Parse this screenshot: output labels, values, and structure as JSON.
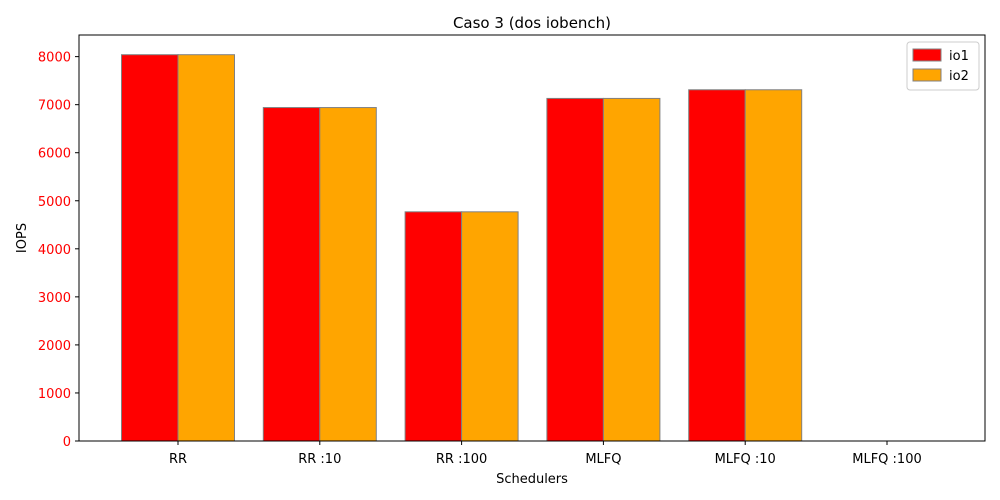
{
  "chart_data": {
    "type": "bar",
    "title": "Caso 3 (dos iobench)",
    "xlabel": "Schedulers",
    "ylabel": "IOPS",
    "categories": [
      "RR",
      "RR :10",
      "RR :100",
      "MLFQ",
      "MLFQ :10",
      "MLFQ :100"
    ],
    "series": [
      {
        "name": "io1",
        "color": "#ff0000",
        "values": [
          8040,
          6940,
          4770,
          7130,
          7310,
          0
        ]
      },
      {
        "name": "io2",
        "color": "#ffa500",
        "values": [
          8040,
          6940,
          4770,
          7130,
          7310,
          0
        ]
      }
    ],
    "ylim": [
      0,
      8450
    ],
    "yticks": [
      0,
      1000,
      2000,
      3000,
      4000,
      5000,
      6000,
      7000,
      8000
    ],
    "ytick_color": "#ff0000",
    "bar_edge_color": "#808080",
    "grid": false,
    "legend_position": "top-right"
  }
}
